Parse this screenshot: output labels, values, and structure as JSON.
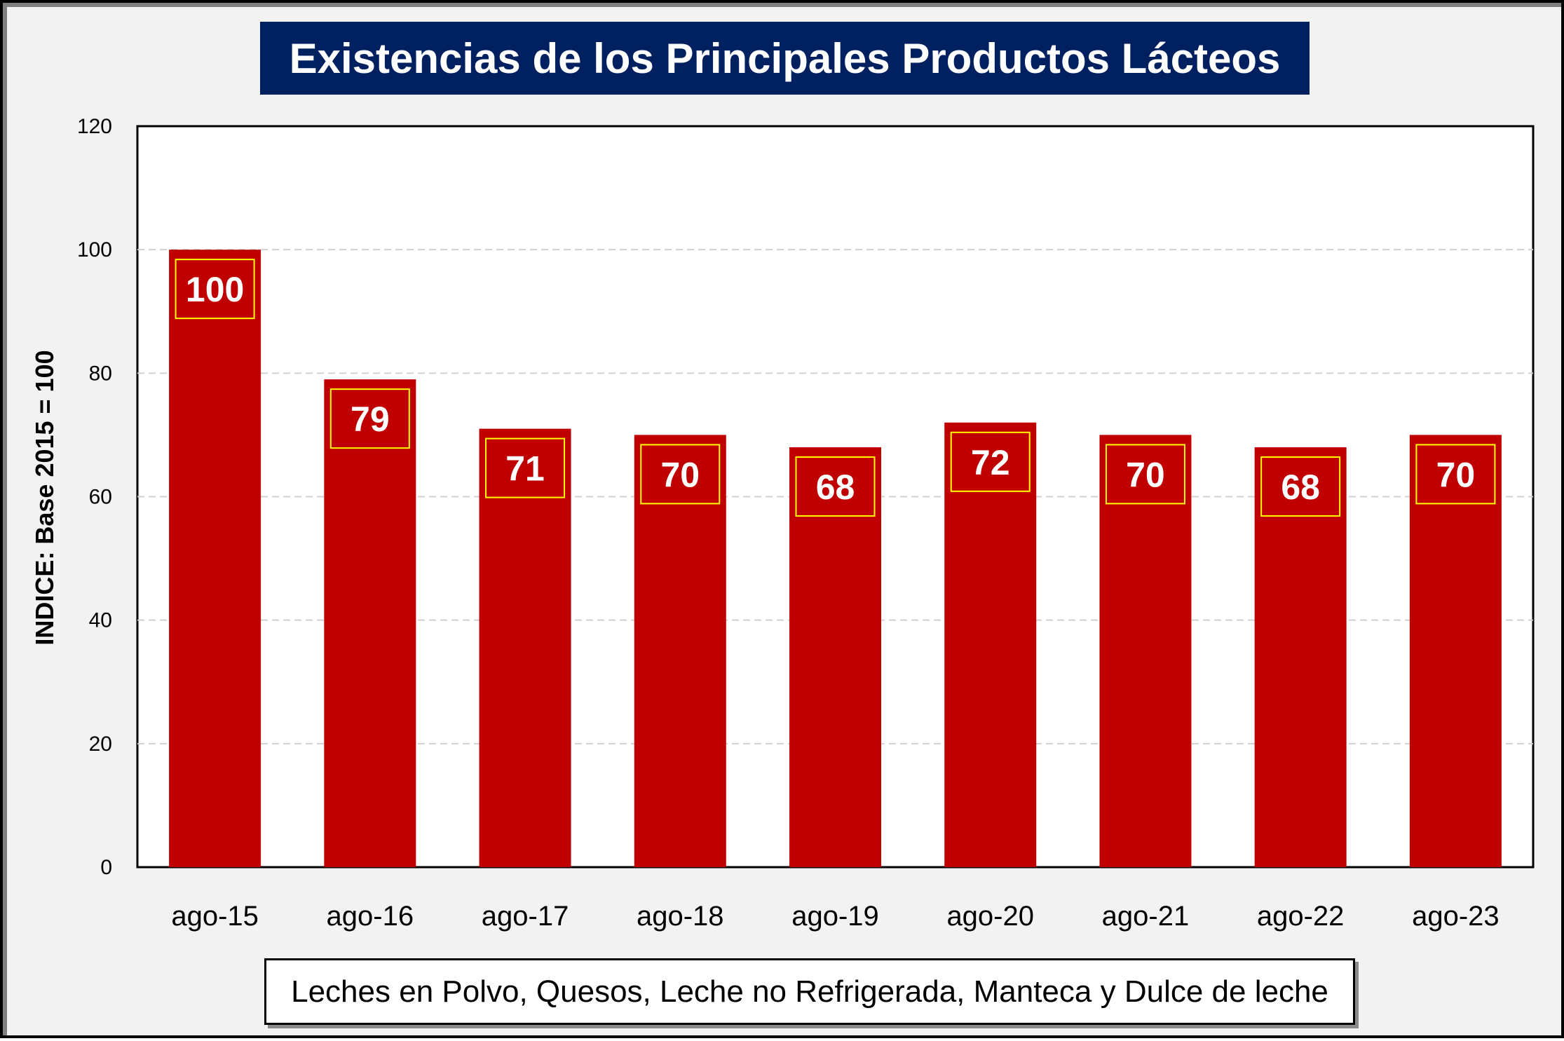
{
  "chart_data": {
    "type": "bar",
    "title": "Existencias de los Principales Productos Lácteos",
    "ylabel": "INDICE: Base 2015 = 100",
    "xlabel": "",
    "categories": [
      "ago-15",
      "ago-16",
      "ago-17",
      "ago-18",
      "ago-19",
      "ago-20",
      "ago-21",
      "ago-22",
      "ago-23"
    ],
    "series": [
      {
        "name": "Leches en Polvo, Quesos, Leche no Refrigerada, Manteca y Dulce de leche",
        "values": [
          100,
          79,
          71,
          70,
          68,
          72,
          70,
          68,
          70
        ],
        "data_labels": [
          "100",
          "79",
          "71",
          "70",
          "68",
          "72",
          "70",
          "68",
          "70"
        ],
        "color": "#c00000"
      }
    ],
    "ylim": [
      0,
      120
    ],
    "yticks": [
      "0",
      "20",
      "40",
      "60",
      "80",
      "100",
      "120"
    ],
    "grid": true,
    "legend_position": "bottom",
    "title_background": "#002060",
    "label_border_color": "#ffff00"
  }
}
